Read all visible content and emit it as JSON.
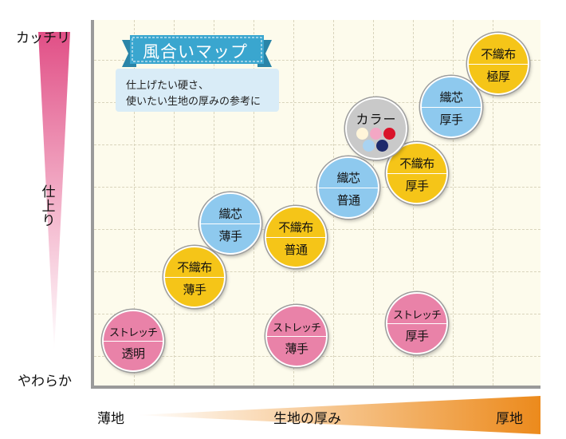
{
  "colors": {
    "gold": "#f5c518",
    "blue": "#8ec9ee",
    "pink": "#e982a8",
    "gray": "#c9c9c9",
    "ribbon": "#3aa6cf",
    "note_bg": "#d9ecf7",
    "y_gradient_top": "#e14f86",
    "x_gradient_end": "#ec8a1c"
  },
  "title": {
    "label": "風合いマップ",
    "note_line1": "仕上げたい硬さ、",
    "note_line2": "使いたい生地の厚みの参考に"
  },
  "y_axis": {
    "top": "カッチリ",
    "middle": [
      "仕",
      "上",
      "り"
    ],
    "bottom": "やわらか"
  },
  "x_axis": {
    "left": "薄地",
    "middle": "生地の厚み",
    "right": "厚地"
  },
  "items": [
    {
      "id": "stretch-clear",
      "top": "ストレッチ",
      "bottom": "透明",
      "color": "pink"
    },
    {
      "id": "stretch-thin",
      "top": "ストレッチ",
      "bottom": "薄手",
      "color": "pink"
    },
    {
      "id": "stretch-thick",
      "top": "ストレッチ",
      "bottom": "厚手",
      "color": "pink"
    },
    {
      "id": "nonwoven-thin",
      "top": "不織布",
      "bottom": "薄手",
      "color": "gold"
    },
    {
      "id": "woven-thin",
      "top": "織芯",
      "bottom": "薄手",
      "color": "blue"
    },
    {
      "id": "nonwoven-normal",
      "top": "不織布",
      "bottom": "普通",
      "color": "gold"
    },
    {
      "id": "woven-normal",
      "top": "織芯",
      "bottom": "普通",
      "color": "blue"
    },
    {
      "id": "nonwoven-thick",
      "top": "不織布",
      "bottom": "厚手",
      "color": "gold"
    },
    {
      "id": "woven-thick",
      "top": "織芯",
      "bottom": "厚手",
      "color": "blue"
    },
    {
      "id": "nonwoven-extra",
      "top": "不織布",
      "bottom": "極厚",
      "color": "gold"
    }
  ],
  "color_item": {
    "label": "カラー",
    "swatches": [
      "#fff5d9",
      "#f3a7c4",
      "#d9132a",
      "#a9d3f2",
      "#1d2a6b"
    ]
  }
}
